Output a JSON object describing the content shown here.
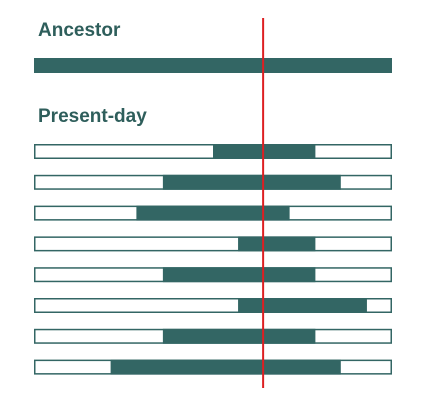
{
  "labels": {
    "ancestor": "Ancestor",
    "present": "Present-day"
  },
  "colors": {
    "segment": "#336664",
    "outline": "#336664",
    "bar_bg": "#ffffff",
    "marker": "#dd1f22",
    "text": "#2e5e5b"
  },
  "ancestor": {
    "start": 0.0,
    "end": 1.0
  },
  "present": [
    {
      "start": 0.5,
      "end": 0.786
    },
    {
      "start": 0.36,
      "end": 0.857
    },
    {
      "start": 0.286,
      "end": 0.714
    },
    {
      "start": 0.57,
      "end": 0.786
    },
    {
      "start": 0.36,
      "end": 0.786
    },
    {
      "start": 0.57,
      "end": 0.93
    },
    {
      "start": 0.36,
      "end": 0.786
    },
    {
      "start": 0.214,
      "end": 0.857
    }
  ],
  "marker_position": 0.64
}
